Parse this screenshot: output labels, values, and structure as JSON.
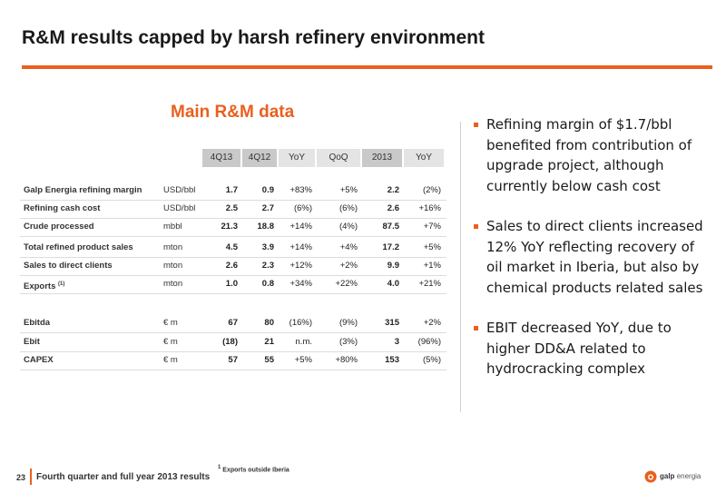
{
  "slide": {
    "title": "R&M results capped by harsh refinery environment",
    "table_title": "Main R&M data",
    "page_number": "23",
    "footer_text": "Fourth quarter and full year 2013 results",
    "footnote_marker": "1",
    "footnote_text": "Exports outside Iberia",
    "logo_brand": "galp",
    "logo_suffix": "energia",
    "accent_color": "#e9601f"
  },
  "table": {
    "headers": [
      "4Q13",
      "4Q12",
      "YoY",
      "QoQ",
      "2013",
      "YoY"
    ],
    "rows": [
      {
        "label": "Galp Energia refining margin",
        "unit": "USD/bbl",
        "q4_13": "1.7",
        "q4_12": "0.9",
        "yoy": "+83%",
        "qoq": "+5%",
        "fy13": "2.2",
        "fy_yoy": "(2%)"
      },
      {
        "label": "Refining cash cost",
        "unit": "USD/bbl",
        "q4_13": "2.5",
        "q4_12": "2.7",
        "yoy": "(6%)",
        "qoq": "(6%)",
        "fy13": "2.6",
        "fy_yoy": "+16%"
      },
      {
        "label": "Crude processed",
        "unit": "mbbl",
        "q4_13": "21.3",
        "q4_12": "18.8",
        "yoy": "+14%",
        "qoq": "(4%)",
        "fy13": "87.5",
        "fy_yoy": "+7%"
      },
      {
        "label": "Total refined product sales",
        "unit": "mton",
        "q4_13": "4.5",
        "q4_12": "3.9",
        "yoy": "+14%",
        "qoq": "+4%",
        "fy13": "17.2",
        "fy_yoy": "+5%"
      },
      {
        "label": "Sales to direct clients",
        "unit": "mton",
        "q4_13": "2.6",
        "q4_12": "2.3",
        "yoy": "+12%",
        "qoq": "+2%",
        "fy13": "9.9",
        "fy_yoy": "+1%"
      },
      {
        "label": "Exports",
        "sup": "(1)",
        "unit": "mton",
        "q4_13": "1.0",
        "q4_12": "0.8",
        "yoy": "+34%",
        "qoq": "+22%",
        "fy13": "4.0",
        "fy_yoy": "+21%"
      },
      {
        "label": "Ebitda",
        "unit": "€ m",
        "q4_13": "67",
        "q4_12": "80",
        "yoy": "(16%)",
        "qoq": "(9%)",
        "fy13": "315",
        "fy_yoy": "+2%"
      },
      {
        "label": "Ebit",
        "unit": "€ m",
        "q4_13": "(18)",
        "q4_12": "21",
        "yoy": "n.m.",
        "qoq": "(3%)",
        "fy13": "3",
        "fy_yoy": "(96%)"
      },
      {
        "label": "CAPEX",
        "unit": "€ m",
        "q4_13": "57",
        "q4_12": "55",
        "yoy": "+5%",
        "qoq": "+80%",
        "fy13": "153",
        "fy_yoy": "(5%)"
      }
    ]
  },
  "bullets": [
    "Refining margin of $1.7/bbl benefited from contribution of upgrade project, although currently below cash cost",
    "Sales to direct clients increased 12% YoY reflecting recovery of oil market in Iberia, but also by chemical products related sales",
    "EBIT decreased YoY, due to higher DD&A related to hydrocracking complex"
  ]
}
